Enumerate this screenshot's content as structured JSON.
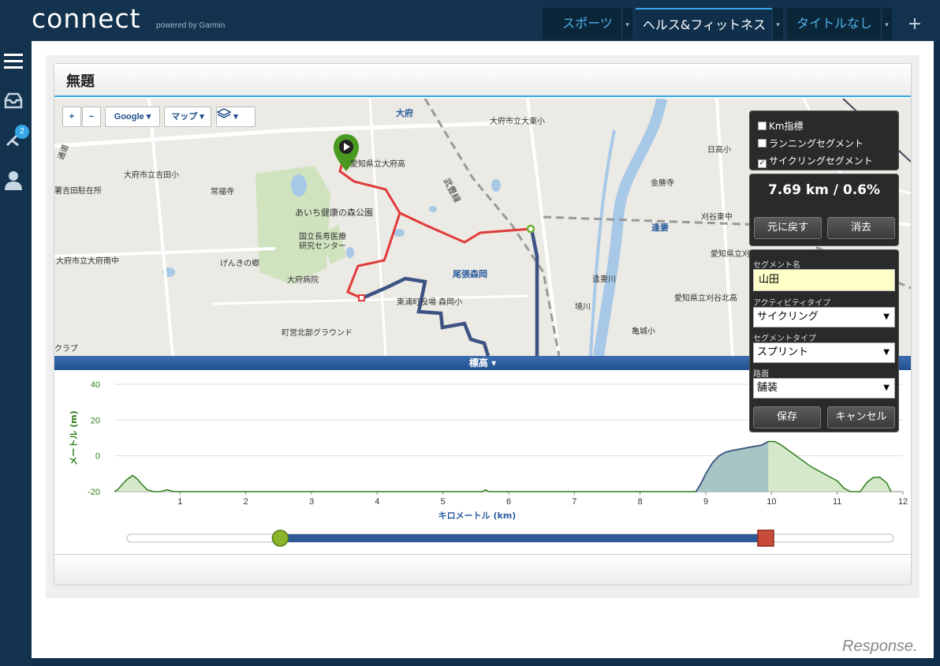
{
  "header": {
    "logo": "connect",
    "logo_sub": "powered by Garmin",
    "tabs": [
      {
        "label": "スポーツ"
      },
      {
        "label": "ヘルス&フィットネス"
      },
      {
        "label": "タイトルなし"
      }
    ],
    "plus": "+"
  },
  "sidebar": {
    "badge_count": "2",
    "icons": [
      "menu-icon",
      "inbox-icon",
      "connections-icon",
      "user-icon"
    ]
  },
  "panel": {
    "title": "無題"
  },
  "map": {
    "controls": {
      "zoom_in": "+",
      "zoom_out": "−",
      "provider": "Google",
      "map_type": "マップ"
    },
    "labels": [
      {
        "text": "大府",
        "cls": "blue big"
      },
      {
        "text": "大府市立大東小",
        "cls": ""
      },
      {
        "text": "愛知県立大府高",
        "cls": ""
      },
      {
        "text": "大府市立吉田小",
        "cls": ""
      },
      {
        "text": "署吉田駐在所",
        "cls": ""
      },
      {
        "text": "常福寺",
        "cls": ""
      },
      {
        "text": "あいち健康の森公園",
        "cls": "big"
      },
      {
        "text": "国立長寿医療",
        "cls": ""
      },
      {
        "text": "研究センター",
        "cls": ""
      },
      {
        "text": "大府市立大府南中",
        "cls": ""
      },
      {
        "text": "げんきの郷",
        "cls": ""
      },
      {
        "text": "大府病院",
        "cls": ""
      },
      {
        "text": "尾張森岡",
        "cls": "blue big"
      },
      {
        "text": "東浦町役場 森岡小",
        "cls": ""
      },
      {
        "text": "町営北部グラウンド",
        "cls": ""
      },
      {
        "text": "クラブ",
        "cls": ""
      },
      {
        "text": "日高小",
        "cls": ""
      },
      {
        "text": "金勝寺",
        "cls": ""
      },
      {
        "text": "刈谷東中",
        "cls": ""
      },
      {
        "text": "逢妻",
        "cls": "blue big"
      },
      {
        "text": "愛知県立刈谷工業高",
        "cls": ""
      },
      {
        "text": "逢妻川",
        "cls": ""
      },
      {
        "text": "境川",
        "cls": ""
      },
      {
        "text": "愛知県立刈谷北高",
        "cls": ""
      },
      {
        "text": "亀城小",
        "cls": ""
      },
      {
        "text": "武豊線",
        "cls": "big"
      },
      {
        "text": "通道",
        "cls": ""
      }
    ]
  },
  "options": {
    "km_markers": "Km指標",
    "running_segments": "ランニングセグメント",
    "cycling_segments": "サイクリングセグメント",
    "cycling_checked": "✓"
  },
  "segment": {
    "distance": "7.69 km / 0.6%",
    "undo_label": "元に戻す",
    "clear_label": "消去",
    "name_label": "セグメント名",
    "name_value": "山田",
    "activity_type_label": "アクティビティタイプ",
    "activity_type_value": "サイクリング",
    "segment_type_label": "セグメントタイプ",
    "segment_type_value": "スプリント",
    "surface_label": "路面",
    "surface_value": "舗装",
    "save_label": "保存",
    "cancel_label": "キャンセル",
    "select_arrow": "▼"
  },
  "elevation_bar": {
    "label": "標高 ▾"
  },
  "chart_data": {
    "type": "area",
    "ylabel": "メートル (m)",
    "xlabel": "キロメートル (km)",
    "ylim": [
      -20,
      40
    ],
    "xlim": [
      0,
      12
    ],
    "yticks": [
      "40",
      "20",
      "0",
      "-20"
    ],
    "xticks": [
      "1",
      "2",
      "3",
      "4",
      "5",
      "6",
      "7",
      "8",
      "9",
      "10",
      "11",
      "12"
    ],
    "grid": true,
    "selection_km": [
      2.4,
      10.0
    ],
    "profile": [
      [
        0,
        -20
      ],
      [
        0.05,
        -19
      ],
      [
        0.12,
        -16
      ],
      [
        0.2,
        -13
      ],
      [
        0.28,
        -11
      ],
      [
        0.35,
        -13
      ],
      [
        0.42,
        -16
      ],
      [
        0.5,
        -19
      ],
      [
        0.6,
        -20
      ],
      [
        0.7,
        -20
      ],
      [
        0.8,
        -19
      ],
      [
        0.9,
        -20
      ],
      [
        1.05,
        -20
      ],
      [
        5.6,
        -20
      ],
      [
        5.65,
        -19
      ],
      [
        5.7,
        -20
      ],
      [
        8.85,
        -20
      ],
      [
        8.92,
        -16
      ],
      [
        9.0,
        -10
      ],
      [
        9.1,
        -4
      ],
      [
        9.2,
        0
      ],
      [
        9.3,
        2
      ],
      [
        9.4,
        3
      ],
      [
        9.55,
        4
      ],
      [
        9.7,
        5
      ],
      [
        9.85,
        6
      ],
      [
        9.95,
        8
      ],
      [
        10.05,
        8
      ],
      [
        10.15,
        6
      ],
      [
        10.3,
        2
      ],
      [
        10.45,
        -2
      ],
      [
        10.6,
        -6
      ],
      [
        10.75,
        -9
      ],
      [
        10.9,
        -12
      ],
      [
        11.0,
        -14
      ],
      [
        11.1,
        -18
      ],
      [
        11.2,
        -20
      ],
      [
        11.35,
        -20
      ],
      [
        11.45,
        -15
      ],
      [
        11.55,
        -12
      ],
      [
        11.65,
        -12
      ],
      [
        11.75,
        -15
      ],
      [
        11.82,
        -20
      ]
    ],
    "selected_profile": [
      [
        8.85,
        -20
      ],
      [
        8.92,
        -16
      ],
      [
        9.0,
        -10
      ],
      [
        9.1,
        -4
      ],
      [
        9.2,
        0
      ],
      [
        9.3,
        2
      ],
      [
        9.4,
        3
      ],
      [
        9.55,
        4
      ],
      [
        9.7,
        5
      ],
      [
        9.85,
        6
      ],
      [
        9.95,
        8
      ]
    ]
  }
}
